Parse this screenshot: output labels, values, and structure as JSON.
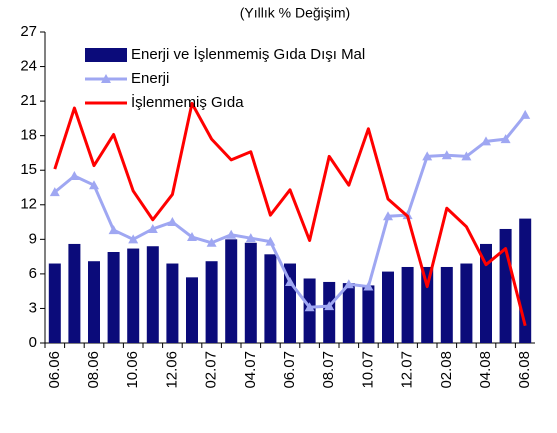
{
  "chart_data": {
    "type": "combo",
    "title": "(Yıllık % Değişim)",
    "categories": [
      "06.06",
      null,
      "08.06",
      null,
      "10.06",
      null,
      "12.06",
      null,
      "02.07",
      null,
      "04.07",
      null,
      "06.07",
      null,
      "08.07",
      null,
      "10.07",
      null,
      "12.07",
      null,
      "02.08",
      null,
      "04.08",
      null,
      "06.08"
    ],
    "series": [
      {
        "name": "Enerji ve İşlenmemiş Gıda Dışı Mal",
        "type": "bar",
        "color": "#0b0b7a",
        "values": [
          6.9,
          8.6,
          7.1,
          7.9,
          8.2,
          8.4,
          6.9,
          5.7,
          7.1,
          9.0,
          8.7,
          7.7,
          6.9,
          5.6,
          5.3,
          5.2,
          5.0,
          6.2,
          6.6,
          6.6,
          6.6,
          6.9,
          8.6,
          9.9,
          10.8
        ]
      },
      {
        "name": "Enerji",
        "type": "line",
        "marker": "triangle",
        "color": "#9fa7f2",
        "values": [
          13.1,
          14.5,
          13.7,
          9.8,
          9.0,
          9.9,
          10.5,
          9.2,
          8.7,
          9.4,
          9.1,
          8.8,
          5.3,
          3.1,
          3.2,
          5.1,
          4.9,
          11.0,
          11.1,
          16.2,
          16.3,
          16.2,
          17.5,
          17.7,
          19.8
        ]
      },
      {
        "name": "İşlenmemiş  Gıda",
        "type": "line",
        "color": "#ff0000",
        "values": [
          15.1,
          20.4,
          15.4,
          18.1,
          13.2,
          10.7,
          12.9,
          20.8,
          17.7,
          15.9,
          16.6,
          11.1,
          13.3,
          8.9,
          16.2,
          13.7,
          18.6,
          12.5,
          11.0,
          4.9,
          11.7,
          10.1,
          6.8,
          8.2,
          1.5
        ]
      }
    ],
    "ylim": [
      0,
      27
    ],
    "yticks": [
      0,
      3,
      6,
      9,
      12,
      15,
      18,
      21,
      24,
      27
    ],
    "grid": false,
    "legend": "upper left"
  }
}
